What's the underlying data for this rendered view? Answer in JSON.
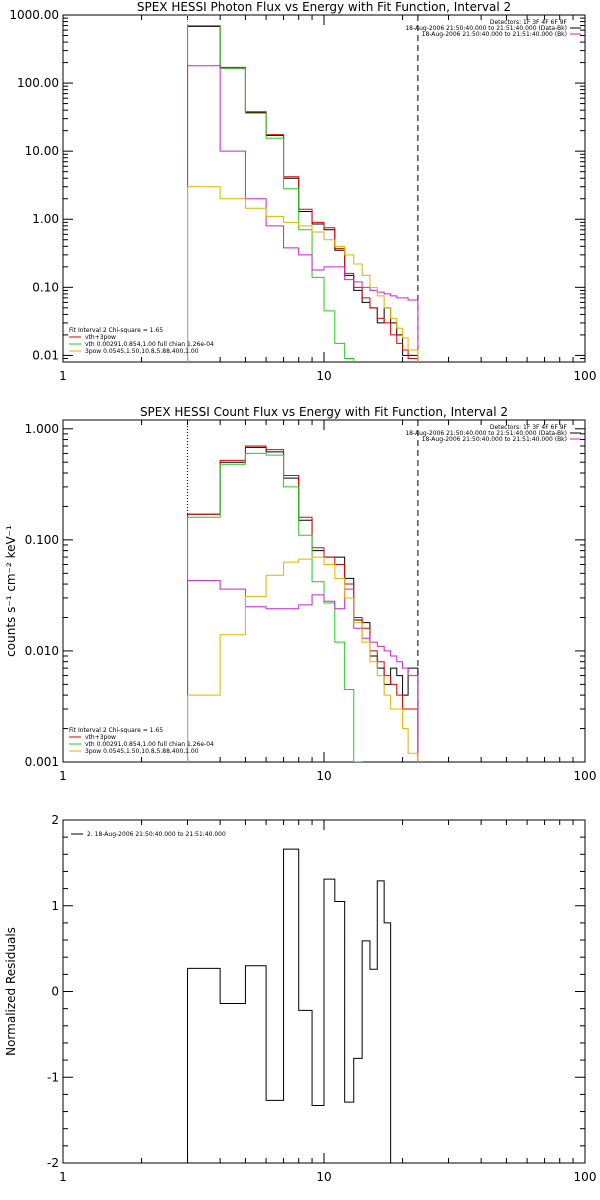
{
  "colors": {
    "black": "#000000",
    "red": "#e00000",
    "green": "#22cc22",
    "magenta": "#cc22cc",
    "yellow": "#e0b400",
    "orange": "#ff8c00"
  },
  "chart_data": [
    {
      "type": "line",
      "title": "SPEX HESSI Photon Flux vs Energy with Fit Function, Interval 2",
      "xscale": "log",
      "yscale": "log",
      "xlim": [
        1,
        100
      ],
      "ylim": [
        0.008,
        1000
      ],
      "xticks": [
        1,
        10,
        100
      ],
      "xticklabels": [
        "1",
        "10",
        "100"
      ],
      "yticks": [
        0.01,
        0.1,
        1,
        10,
        100,
        1000
      ],
      "yticklabels": [
        "0.01",
        "0.10",
        "1.00",
        "10.00",
        "100.00",
        "1000.00"
      ],
      "ylabel": "",
      "header_lines": [
        "Detectors: 1F 3F 4F 6F 9F",
        "18-Aug-2006 21:50:40.000 to 21:51:40.000 (Data-Bk)",
        "18-Aug-2006 21:50:40.000 to 21:51:40.000 (Bk)"
      ],
      "header_colors": [
        "black",
        "black",
        "magenta"
      ],
      "fit_label": "Fit Interval 2   Chi-square = 1.65",
      "legend": [
        {
          "label": "vth+3pow",
          "color": "red"
        },
        {
          "label": "vth 0.00291,0.854,1.00  full chian 1.26e-04",
          "color": "green"
        },
        {
          "label": "3pow 0.0545,1.50,10.8,5.88,400,1.00",
          "color": "yellow"
        }
      ],
      "vlines": [
        {
          "x": 3,
          "style": "dotted",
          "color": "orange"
        },
        {
          "x": 22.9,
          "style": "dashed",
          "color": "black"
        }
      ],
      "bin_edges": [
        3,
        4,
        5,
        6,
        7,
        8,
        9,
        10,
        11,
        12,
        13,
        14,
        15,
        16,
        17,
        18,
        19,
        20,
        21,
        22.9
      ],
      "series": [
        {
          "color": "black",
          "values": [
            680,
            165,
            37,
            17,
            4.0,
            1.3,
            0.85,
            0.7,
            0.35,
            0.15,
            0.09,
            0.06,
            0.05,
            0.03,
            0.05,
            0.03,
            0.02,
            0.01,
            0.01
          ]
        },
        {
          "color": "red",
          "values": [
            700,
            170,
            38,
            17.5,
            4.2,
            1.4,
            0.9,
            0.75,
            0.37,
            0.16,
            0.1,
            0.07,
            0.05,
            0.035,
            0.03,
            0.02,
            0.015,
            0.012,
            0.009
          ]
        },
        {
          "color": "green",
          "values": [
            700,
            165,
            36,
            15.5,
            2.8,
            0.7,
            0.14,
            0.045,
            0.015,
            0.009
          ]
        },
        {
          "color": "magenta",
          "values": [
            180,
            10,
            2.0,
            0.8,
            0.38,
            0.3,
            0.18,
            0.2,
            0.2,
            0.13,
            0.12,
            0.1,
            0.09,
            0.085,
            0.08,
            0.075,
            0.07,
            0.07,
            0.065
          ]
        },
        {
          "color": "yellow",
          "values": [
            3.0,
            2.0,
            1.45,
            1.1,
            0.9,
            0.8,
            0.65,
            0.5,
            0.4,
            0.3,
            0.22,
            0.15,
            0.1,
            0.075,
            0.05,
            0.035,
            0.025,
            0.018,
            0.012
          ]
        }
      ]
    },
    {
      "type": "line",
      "title": "SPEX HESSI Count Flux vs Energy with Fit Function, Interval 2",
      "xscale": "log",
      "yscale": "log",
      "xlim": [
        1,
        100
      ],
      "ylim": [
        0.001,
        1.2
      ],
      "xticks": [
        1,
        10,
        100
      ],
      "xticklabels": [
        "1",
        "10",
        "100"
      ],
      "yticks": [
        0.001,
        0.01,
        0.1,
        1
      ],
      "yticklabels": [
        "0.001",
        "0.010",
        "0.100",
        "1.000"
      ],
      "ylabel": "counts s⁻¹ cm⁻² keV⁻¹",
      "header_lines": [
        "Detectors: 1F 3F 4F 6F 9F",
        "18-Aug-2006 21:50:40.000 to 21:51:40.000 (Data-Bk)",
        "18-Aug-2006 21:50:40.000 to 21:51:40.000 (Bk)"
      ],
      "header_colors": [
        "black",
        "black",
        "magenta"
      ],
      "fit_label": "Fit Interval 2   Chi-square = 1.65",
      "legend": [
        {
          "label": "vth+3pow",
          "color": "red"
        },
        {
          "label": "vth 0.00291,0.854,1.00  full chian 1.26e-04",
          "color": "green"
        },
        {
          "label": "3pow 0.0545,1.50,10.8,5.88,400,1.00",
          "color": "yellow"
        }
      ],
      "vlines": [
        {
          "x": 3,
          "style": "dotted",
          "color": "black"
        },
        {
          "x": 22.9,
          "style": "dashed",
          "color": "black"
        }
      ],
      "bin_edges": [
        3,
        4,
        5,
        6,
        7,
        8,
        9,
        10,
        11,
        12,
        13,
        14,
        15,
        16,
        17,
        18,
        19,
        20,
        21,
        22.9
      ],
      "series": [
        {
          "color": "black",
          "values": [
            0.17,
            0.5,
            0.68,
            0.62,
            0.36,
            0.15,
            0.08,
            0.07,
            0.07,
            0.045,
            0.019,
            0.018,
            0.009,
            0.007,
            0.005,
            0.007,
            0.006,
            0.004,
            0.007
          ]
        },
        {
          "color": "red",
          "values": [
            0.17,
            0.52,
            0.7,
            0.65,
            0.38,
            0.16,
            0.085,
            0.07,
            0.06,
            0.04,
            0.02,
            0.016,
            0.01,
            0.008,
            0.006,
            0.005,
            0.004,
            0.003,
            0.003
          ]
        },
        {
          "color": "green",
          "values": [
            0.16,
            0.48,
            0.6,
            0.58,
            0.3,
            0.11,
            0.042,
            0.027,
            0.012,
            0.0045,
            0.0009
          ]
        },
        {
          "color": "magenta",
          "values": [
            0.043,
            0.036,
            0.025,
            0.024,
            0.024,
            0.026,
            0.032,
            0.028,
            0.024,
            0.036,
            0.016,
            0.013,
            0.012,
            0.011,
            0.01,
            0.009,
            0.008,
            0.007,
            0.006
          ]
        },
        {
          "color": "yellow",
          "values": [
            0.004,
            0.014,
            0.031,
            0.048,
            0.063,
            0.067,
            0.07,
            0.06,
            0.045,
            0.03,
            0.018,
            0.012,
            0.008,
            0.006,
            0.004,
            0.003,
            0.003,
            0.002,
            0.0012
          ]
        }
      ]
    },
    {
      "type": "line",
      "title": "",
      "xscale": "log",
      "yscale": "linear",
      "xlim": [
        1,
        100
      ],
      "ylim": [
        -2,
        2
      ],
      "xticks": [
        1,
        10,
        100
      ],
      "xticklabels": [
        "1",
        "10",
        "100"
      ],
      "yticks": [
        -2,
        -1,
        0,
        1,
        2
      ],
      "yticklabels": [
        "-2",
        "-1",
        "0",
        "1",
        "2"
      ],
      "ylabel": "Normalized Residuals",
      "legend": [
        {
          "label": "2. 18-Aug-2006 21:50:40.000 to 21:51:40.000",
          "color": "black"
        }
      ],
      "bin_edges": [
        3,
        4,
        5,
        6,
        7,
        8,
        9,
        10,
        11,
        12,
        13,
        14,
        15,
        16,
        17,
        18,
        19,
        20,
        21,
        22.9
      ],
      "series": [
        {
          "color": "black",
          "values": [
            0.27,
            -0.14,
            0.3,
            -1.27,
            1.66,
            -0.22,
            -1.33,
            1.31,
            1.05,
            -1.29,
            -0.78,
            0.59,
            0.26,
            1.29,
            0.8
          ]
        }
      ]
    }
  ]
}
